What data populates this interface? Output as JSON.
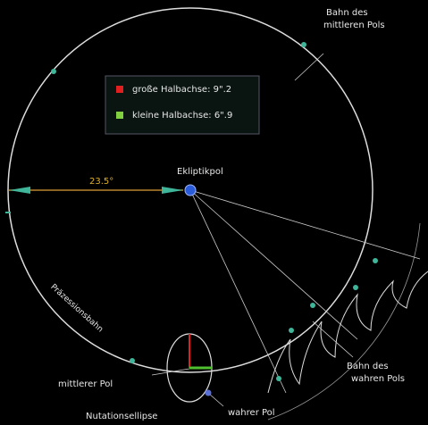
{
  "orbit_label": [
    "Bahn des",
    "mittleren Pols"
  ],
  "legend": {
    "items": [
      "große Halbachse: 9\".2",
      "kleine Halbachse: 6\".9"
    ]
  },
  "angle_label": "23.5°",
  "pole_label": "Ekliptikpol",
  "precession_label": "Präzessionsbahn",
  "mean_pole_label": "mittlerer Pol",
  "ellipse_label": "Nutationsellipse",
  "true_pole_label": "wahrer Pol",
  "true_orbit_label": [
    "Bahn des",
    "wahren Pols"
  ]
}
